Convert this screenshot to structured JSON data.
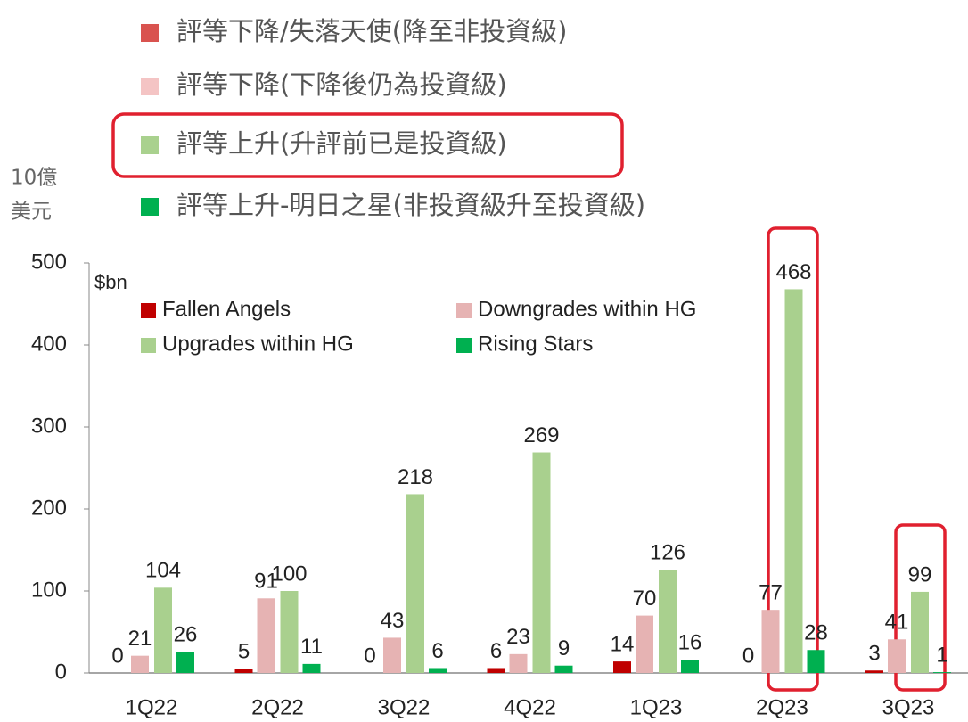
{
  "chart_data": {
    "type": "bar",
    "legend_zh": [
      {
        "name": "評等下降/失落天使(降至非投資級)",
        "color": "#d9534f"
      },
      {
        "name": "評等下降(下降後仍為投資級)",
        "color": "#f4c4c4"
      },
      {
        "name": "評等上升(升評前已是投資級)",
        "color": "#a9d18e"
      },
      {
        "name": "評等上升-明日之星(非投資級升至投資級)",
        "color": "#00b050"
      }
    ],
    "y_label": [
      "10億",
      "美元"
    ],
    "unit": "$bn",
    "categories": [
      "1Q22",
      "2Q22",
      "3Q22",
      "4Q22",
      "1Q23",
      "2Q23",
      "3Q23"
    ],
    "series": [
      {
        "name": "Fallen Angels",
        "color": "#c00000",
        "values": [
          0,
          5,
          0,
          6,
          14,
          0,
          3
        ]
      },
      {
        "name": "Downgrades within HG",
        "color": "#e6b3b3",
        "values": [
          21,
          91,
          43,
          23,
          70,
          77,
          41
        ]
      },
      {
        "name": "Upgrades within HG",
        "color": "#a9d08e",
        "values": [
          104,
          100,
          218,
          269,
          126,
          468,
          99
        ]
      },
      {
        "name": "Rising Stars",
        "color": "#00b050",
        "values": [
          26,
          11,
          6,
          9,
          16,
          28,
          1
        ]
      }
    ],
    "ylim": [
      0,
      500
    ],
    "yticks": [
      0,
      100,
      200,
      300,
      400,
      500
    ]
  }
}
